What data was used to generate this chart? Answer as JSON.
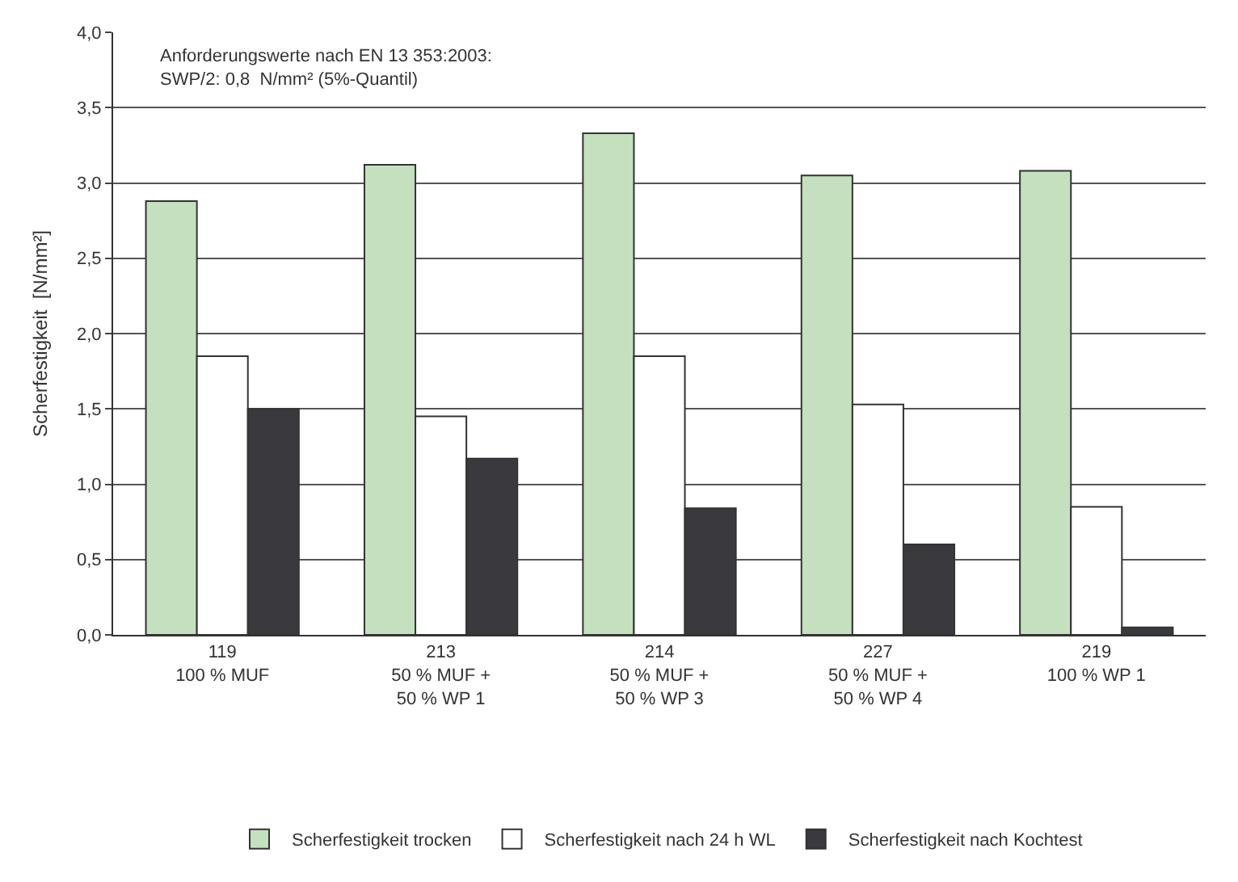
{
  "chart_data": {
    "type": "bar",
    "ylabel": "Scherfestigkeit  [N/mm²]",
    "categories": [
      "119\n100 % MUF",
      "213\n50 % MUF +\n50 % WP 1",
      "214\n50 % MUF +\n50 % WP 3",
      "227\n50 % MUF +\n50 % WP 4",
      "219\n100 % WP 1"
    ],
    "series": [
      {
        "name": "Scherfestigkeit trocken",
        "color": "#c5e0bf",
        "values": [
          2.88,
          3.12,
          3.33,
          3.05,
          3.08
        ]
      },
      {
        "name": "Scherfestigkeit nach 24 h WL",
        "color": "#ffffff",
        "values": [
          1.85,
          1.45,
          1.85,
          1.53,
          0.85
        ]
      },
      {
        "name": "Scherfestigkeit nach Kochtest",
        "color": "#3a3a3e",
        "values": [
          1.5,
          1.17,
          0.84,
          0.6,
          0.05
        ]
      }
    ],
    "ylim": [
      0,
      4
    ],
    "yticks": [
      {
        "value": 0,
        "label": "0,0"
      },
      {
        "value": 0.5,
        "label": "0,5"
      },
      {
        "value": 1,
        "label": "1,0"
      },
      {
        "value": 1.5,
        "label": "1,5"
      },
      {
        "value": 2,
        "label": "2,0"
      },
      {
        "value": 2.5,
        "label": "2,5"
      },
      {
        "value": 3,
        "label": "3,0"
      },
      {
        "value": 3.5,
        "label": "3,5"
      },
      {
        "value": 4,
        "label": "4,0"
      }
    ],
    "annotations": [
      "Anforderungswerte nach EN 13 353:2003:\nSWP/2: 0,8  N/mm² (5%-Quantil)"
    ],
    "grid": "y",
    "legend": "bottom"
  }
}
